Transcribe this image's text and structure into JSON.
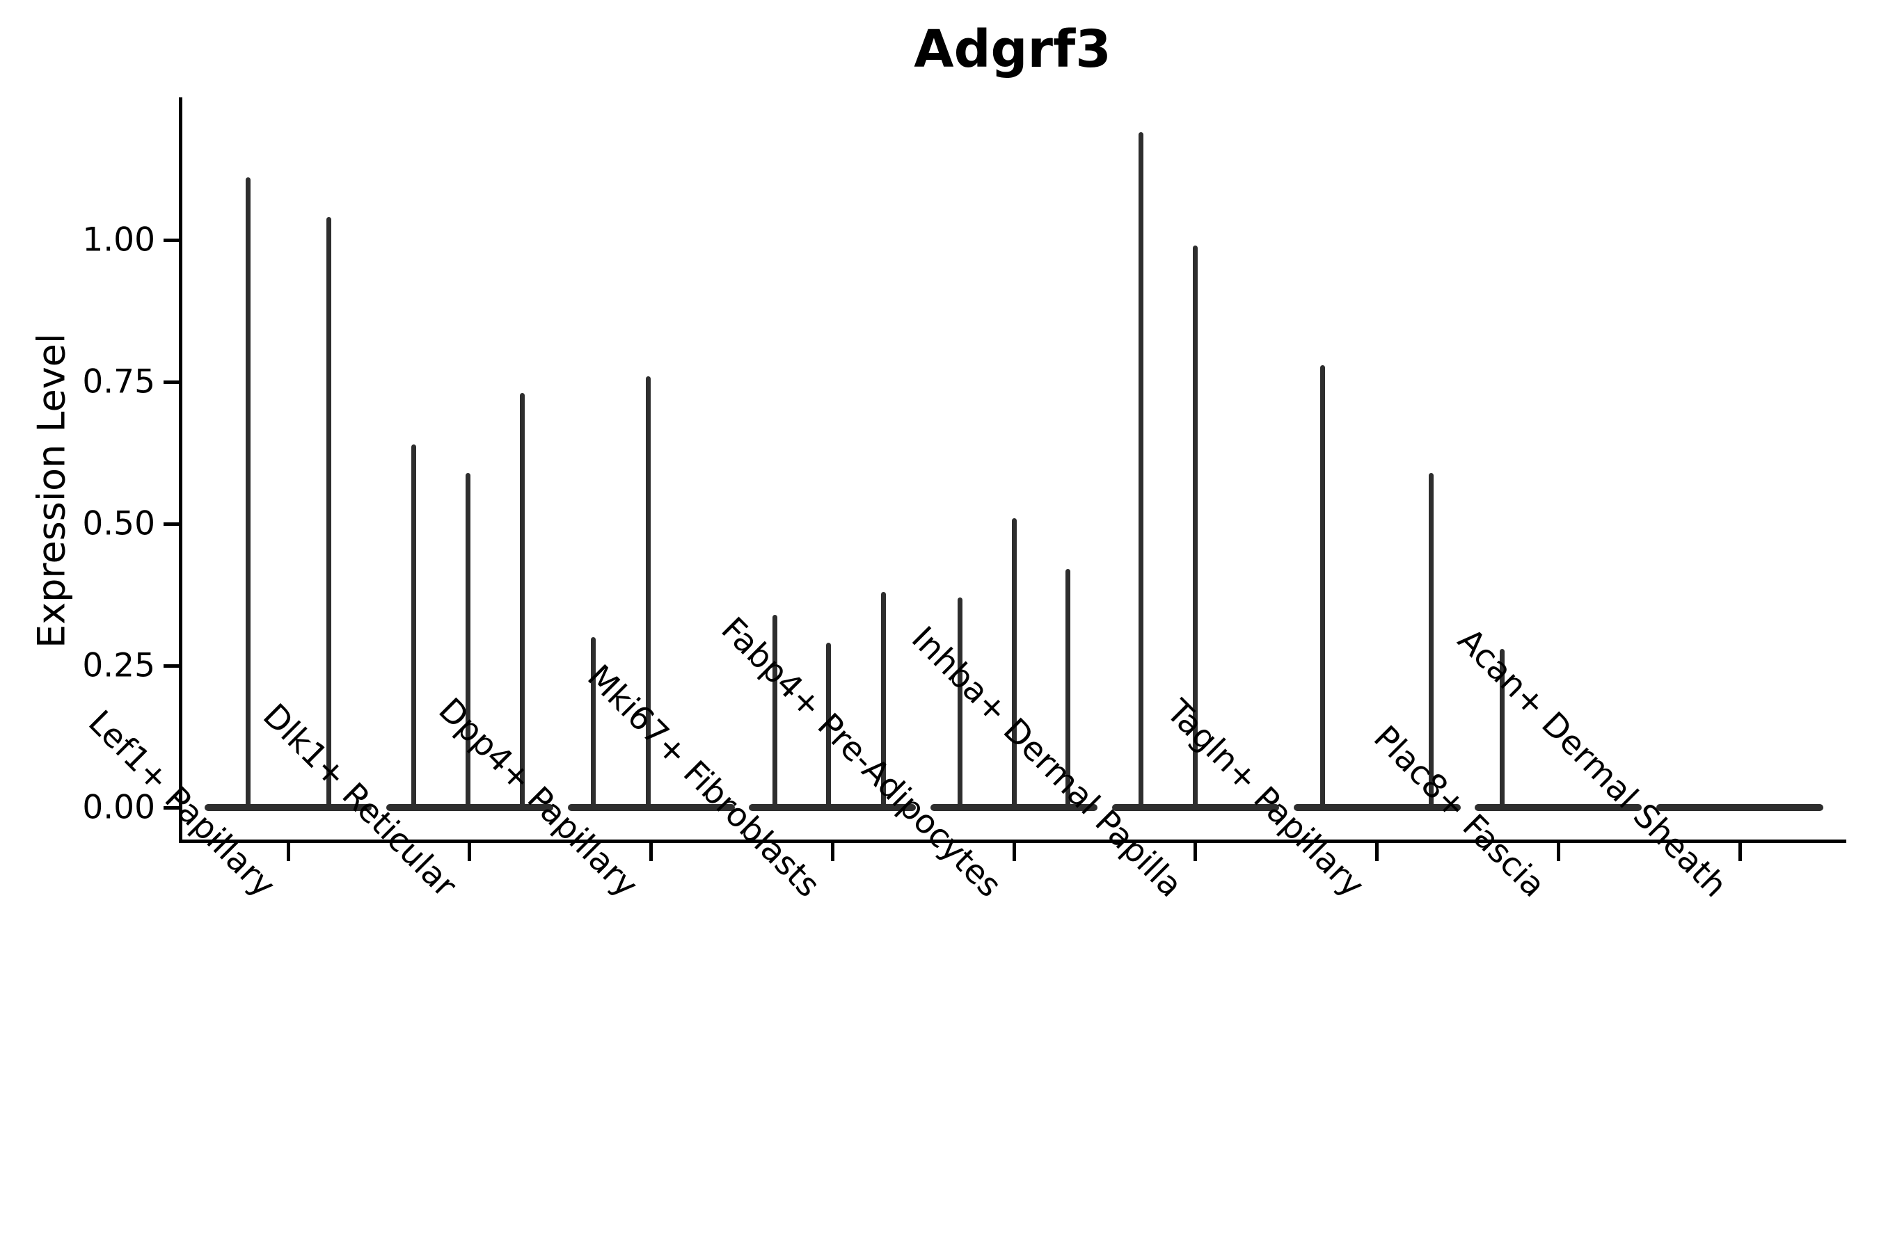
{
  "figure": {
    "title": "Adgrf3",
    "y_axis_title": "Expression Level"
  },
  "chart_data": {
    "type": "violin",
    "title": "Adgrf3",
    "xlabel": "",
    "ylabel": "Expression Level",
    "ylim": [
      -0.06,
      1.31
    ],
    "grid": false,
    "legend": "none",
    "style_note": "Seurat-like VlnPlot: each group shows flat violin bodies at 0 expression (horizontal line) with thin vertical spikes marking sparse expressing cells; spike top = max expression",
    "y_ticks": {
      "values": [
        0.0,
        0.25,
        0.5,
        0.75,
        1.0
      ],
      "labels": [
        "0.00",
        "0.25",
        "0.50",
        "0.75",
        "1.00"
      ]
    },
    "categories": [
      "Lef1+ Papillary",
      "Dlk1+ Reticular",
      "Dpp4+ Papillary",
      "Mki67+ Fibroblasts",
      "Fabp4+ Pre-Adipocytes",
      "Inhba+ Dermal Papilla",
      "Tagln+ Papillary",
      "Plac8+ Fascia",
      "Acan+ Dermal Sheath"
    ],
    "groups": [
      {
        "category": "Lef1+ Papillary",
        "spikes": [
          {
            "offset": -58,
            "max": 1.11
          },
          {
            "offset": 58,
            "max": 1.04
          }
        ]
      },
      {
        "category": "Dlk1+ Reticular",
        "spikes": [
          {
            "offset": -80,
            "max": 0.64
          },
          {
            "offset": -2,
            "max": 0.59
          },
          {
            "offset": 76,
            "max": 0.73
          }
        ]
      },
      {
        "category": "Dpp4+ Papillary",
        "spikes": [
          {
            "offset": -83,
            "max": 0.3
          },
          {
            "offset": -4,
            "max": 0.76
          }
        ]
      },
      {
        "category": "Mki67+ Fibroblasts",
        "spikes": [
          {
            "offset": -83,
            "max": 0.34
          },
          {
            "offset": -6,
            "max": 0.29
          },
          {
            "offset": 73,
            "max": 0.38
          }
        ]
      },
      {
        "category": "Fabp4+ Pre-Adipocytes",
        "spikes": [
          {
            "offset": -78,
            "max": 0.37
          },
          {
            "offset": 0,
            "max": 0.51
          },
          {
            "offset": 77,
            "max": 0.42
          }
        ]
      },
      {
        "category": "Inhba+ Dermal Papilla",
        "spikes": [
          {
            "offset": -78,
            "max": 1.19
          },
          {
            "offset": 0,
            "max": 0.99
          }
        ]
      },
      {
        "category": "Tagln+ Papillary",
        "spikes": [
          {
            "offset": -78,
            "max": 0.78
          },
          {
            "offset": 78,
            "max": 0.59
          }
        ]
      },
      {
        "category": "Plac8+ Fascia",
        "spikes": [
          {
            "offset": -81,
            "max": 0.28
          }
        ]
      },
      {
        "category": "Acan+ Dermal Sheath",
        "spikes": []
      }
    ],
    "colors": {
      "violin_line": "#2e2e2e",
      "axis": "#000000",
      "text": "#000000",
      "background": "#ffffff"
    }
  }
}
